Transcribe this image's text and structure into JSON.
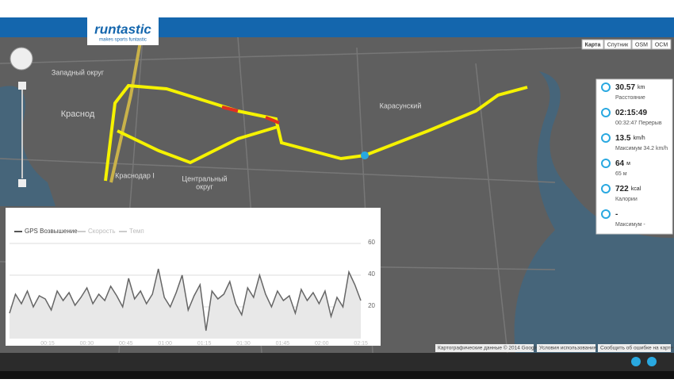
{
  "header": {
    "logo": "runtastic",
    "tagline": "makes sports funtastic"
  },
  "map_types": [
    "Карта",
    "Спутник",
    "OSM",
    "OCM"
  ],
  "map_labels": [
    "Западный округ",
    "Краснод",
    "Карасунский",
    "Центральный",
    "округ",
    "Краснодар I"
  ],
  "stats": [
    {
      "value": "30.57",
      "unit": "km",
      "label": "Расстояние"
    },
    {
      "value": "02:15:49",
      "unit": "",
      "label": "00:32:47 Перерыв"
    },
    {
      "value": "13.5",
      "unit": "km/h",
      "label": "Максимум 34.2 km/h"
    },
    {
      "value": "64",
      "unit": "м",
      "label": "65 м"
    },
    {
      "value": "722",
      "unit": "kcal",
      "label": "Калории"
    },
    {
      "value": "-",
      "unit": "",
      "label": "Максимум -"
    }
  ],
  "footer": [
    "Картографические данные © 2014 Google",
    "Условия использования",
    "Сообщить об ошибке на карте"
  ],
  "chart_data": {
    "type": "line",
    "legend": [
      "GPS Возвышение",
      "Скорость",
      "Темп"
    ],
    "xtick_labels": [
      "00:15",
      "00:30",
      "00:45",
      "01:00",
      "01:15",
      "01:30",
      "01:45",
      "02:00",
      "02:15"
    ],
    "ylim": [
      0,
      60
    ],
    "yticks": [
      20,
      40,
      60
    ],
    "grid": true,
    "color": "#666666",
    "values": [
      16,
      28,
      22,
      30,
      20,
      27,
      25,
      18,
      30,
      24,
      29,
      21,
      26,
      32,
      22,
      28,
      24,
      33,
      27,
      20,
      38,
      25,
      30,
      22,
      28,
      44,
      26,
      20,
      29,
      40,
      18,
      27,
      34,
      5,
      30,
      25,
      28,
      36,
      22,
      15,
      32,
      26,
      40,
      28,
      20,
      30,
      24,
      27,
      16,
      31,
      24,
      29,
      22,
      30,
      14,
      26,
      20,
      42,
      34,
      24
    ]
  }
}
